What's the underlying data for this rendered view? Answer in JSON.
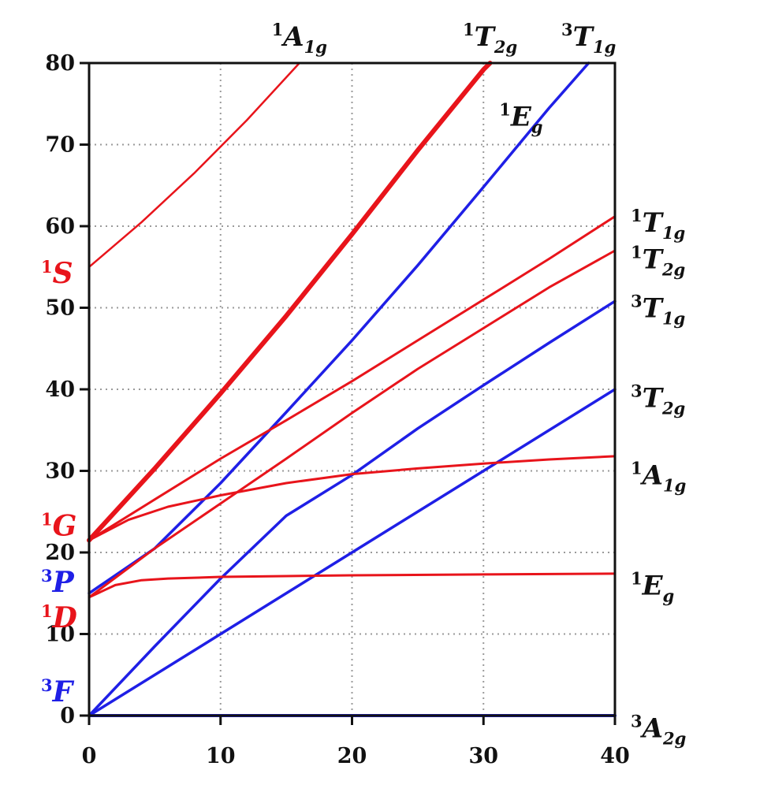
{
  "chart_data": {
    "type": "line",
    "title": "",
    "xlabel": "",
    "ylabel": "",
    "xlim": [
      0,
      40
    ],
    "ylim": [
      0,
      80
    ],
    "x_ticks": [
      0,
      10,
      20,
      30,
      40
    ],
    "y_ticks": [
      0,
      10,
      20,
      30,
      40,
      50,
      60,
      70,
      80
    ],
    "grid": "dotted",
    "colors": {
      "singlet": "#e8141b",
      "triplet": "#1f1fe6",
      "axis": "#111111"
    },
    "free_ion_terms": [
      {
        "id": "3F",
        "mult": "3",
        "letter": "F",
        "energy": 0,
        "color": "triplet"
      },
      {
        "id": "1D",
        "mult": "1",
        "letter": "D",
        "energy": 14.5,
        "color": "singlet"
      },
      {
        "id": "3P",
        "mult": "3",
        "letter": "P",
        "energy": 15,
        "color": "triplet"
      },
      {
        "id": "1G",
        "mult": "1",
        "letter": "G",
        "energy": 21.5,
        "color": "singlet"
      },
      {
        "id": "1S",
        "mult": "1",
        "letter": "S",
        "energy": 55,
        "color": "singlet"
      }
    ],
    "series": [
      {
        "id": "3A2g",
        "color": "triplet",
        "width": 4,
        "x": [
          0,
          40
        ],
        "y": [
          0,
          0
        ]
      },
      {
        "id": "3T2g",
        "color": "triplet",
        "width": 3.5,
        "x": [
          0,
          10,
          20,
          30,
          40
        ],
        "y": [
          0,
          10,
          20,
          30,
          40
        ]
      },
      {
        "id": "3T1g_F",
        "color": "triplet",
        "width": 3.5,
        "x": [
          0,
          5,
          10,
          15,
          20,
          25,
          30,
          35,
          40
        ],
        "y": [
          0,
          8.5,
          16.8,
          24.5,
          29.5,
          35.2,
          40.5,
          45.7,
          50.8
        ]
      },
      {
        "id": "3T1g_P",
        "color": "triplet",
        "width": 3.5,
        "x": [
          0,
          5,
          10,
          15,
          20,
          25,
          30,
          35,
          38
        ],
        "y": [
          15,
          20.5,
          28.5,
          37.2,
          46,
          55.2,
          64.8,
          74.5,
          80
        ]
      },
      {
        "id": "1Eg_D",
        "color": "singlet",
        "width": 3,
        "x": [
          0,
          2,
          4,
          6,
          8,
          10,
          15,
          20,
          30,
          40
        ],
        "y": [
          14.5,
          16,
          16.6,
          16.8,
          16.9,
          17,
          17.1,
          17.2,
          17.3,
          17.4
        ]
      },
      {
        "id": "1A1g_G",
        "color": "singlet",
        "width": 3,
        "x": [
          0,
          3,
          6,
          10,
          15,
          20,
          25,
          30,
          35,
          40
        ],
        "y": [
          21.5,
          24,
          25.6,
          27,
          28.5,
          29.6,
          30.3,
          30.9,
          31.4,
          31.8
        ]
      },
      {
        "id": "1T2g_G",
        "color": "singlet",
        "width": 3,
        "x": [
          0,
          5,
          10,
          15,
          20,
          25,
          30,
          35,
          40
        ],
        "y": [
          14.5,
          20.5,
          26,
          31.5,
          37.1,
          42.5,
          47.5,
          52.5,
          57
        ]
      },
      {
        "id": "1T1g_G",
        "color": "singlet",
        "width": 3,
        "x": [
          0,
          5,
          10,
          15,
          20,
          25,
          30,
          35,
          40
        ],
        "y": [
          21.5,
          26.5,
          31.5,
          36.2,
          41,
          46,
          51,
          56,
          61.2
        ]
      },
      {
        "id": "1T2g_D",
        "color": "singlet",
        "width": 6,
        "x": [
          0,
          5,
          10,
          15,
          20,
          25,
          30,
          30.5
        ],
        "y": [
          21.5,
          30.3,
          39.5,
          49,
          59,
          69.3,
          79.2,
          80
        ]
      },
      {
        "id": "1Eg_G",
        "color": "singlet",
        "width": 2.5,
        "x": [
          0,
          5,
          10,
          15,
          20,
          25,
          30,
          30.5
        ],
        "y": [
          21.5,
          30.1,
          39.4,
          48.9,
          58.9,
          69.2,
          79.2,
          80
        ]
      },
      {
        "id": "1A1g_S",
        "color": "singlet",
        "width": 2.5,
        "x": [
          0,
          4,
          8,
          12,
          16
        ],
        "y": [
          55,
          60.5,
          66.5,
          73,
          80
        ]
      }
    ],
    "right_labels": [
      {
        "mult": "1",
        "letter": "T",
        "sub": "1g",
        "y": 60.5
      },
      {
        "mult": "1",
        "letter": "T",
        "sub": "2g",
        "y": 56
      },
      {
        "mult": "3",
        "letter": "T",
        "sub": "1g",
        "y": 50
      },
      {
        "mult": "3",
        "letter": "T",
        "sub": "2g",
        "y": 39
      },
      {
        "mult": "1",
        "letter": "A",
        "sub": "1g",
        "y": 29.5
      },
      {
        "mult": "1",
        "letter": "E",
        "sub": "g",
        "y": 16
      },
      {
        "mult": "3",
        "letter": "A",
        "sub": "2g",
        "y": -1.5
      }
    ],
    "top_labels": [
      {
        "mult": "1",
        "letter": "A",
        "sub": "1g",
        "x": 16
      },
      {
        "mult": "1",
        "letter": "T",
        "sub": "2g",
        "x": 30.5
      },
      {
        "mult": "3",
        "letter": "T",
        "sub": "1g",
        "x": 38
      }
    ],
    "inner_labels": [
      {
        "mult": "1",
        "letter": "E",
        "sub": "g",
        "x": 31.2,
        "y": 73.5
      }
    ]
  }
}
